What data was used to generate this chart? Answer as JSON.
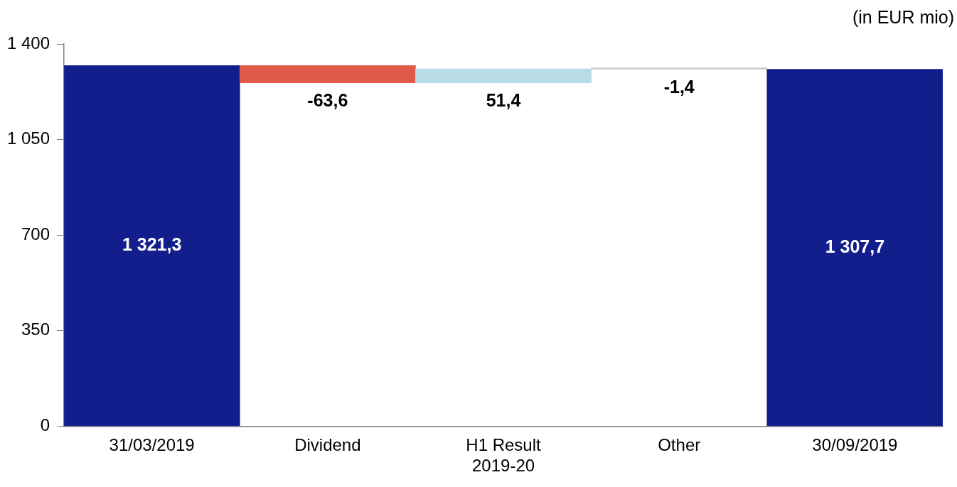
{
  "chart_data": {
    "type": "bar",
    "categories": [
      "31/03/2019",
      "Dividend",
      "H1 Result\n2019-20",
      "Other",
      "30/09/2019"
    ],
    "values": [
      1321.3,
      -63.6,
      51.4,
      -1.4,
      1307.7
    ],
    "base": [
      0,
      1321.3,
      1257.7,
      1309.1,
      0
    ],
    "colors": [
      "#121e8c",
      "#e05a4a",
      "#b8dce6",
      "#c8c8c8",
      "#121e8c"
    ],
    "value_labels": [
      "1 321,3",
      "-63,6",
      "51,4",
      "-1,4",
      "1 307,7"
    ],
    "ylim": [
      0,
      1400
    ],
    "yticks": [
      0,
      350,
      700,
      {
        "value": 1050,
        "label": "1 050"
      },
      {
        "value": 1400,
        "label": "1 400"
      }
    ],
    "grid": false,
    "legend": false,
    "annotations": [
      "(in EUR mio)"
    ]
  }
}
